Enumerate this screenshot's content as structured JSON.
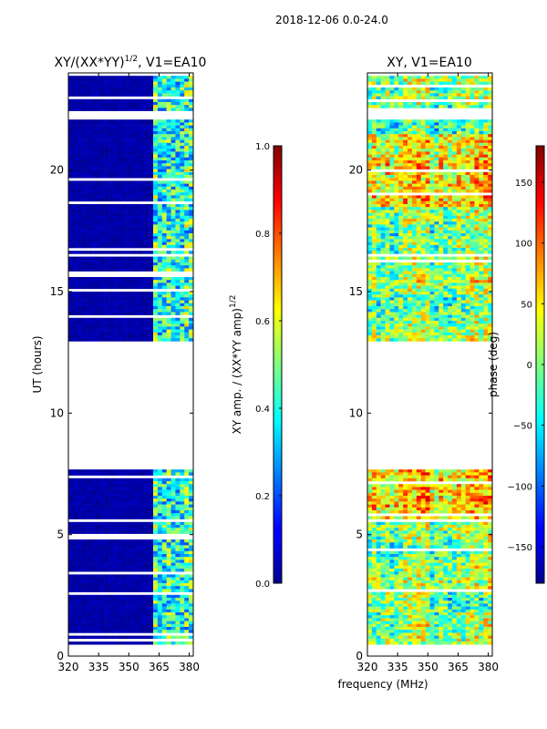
{
  "figure": {
    "suptitle": "2018-12-06 0.0-24.0",
    "shared_xlabel": "frequency (MHz)"
  },
  "chart_data": [
    {
      "type": "heatmap",
      "title": "XY/(XX*YY)",
      "title_superscript": "1/2",
      "title_suffix": ", V1=EA10",
      "xlabel": "",
      "ylabel": "UT (hours)",
      "xlim": [
        320,
        382
      ],
      "ylim": [
        0,
        24
      ],
      "xticks": [
        320,
        335,
        350,
        365,
        380
      ],
      "yticks": [
        0,
        5,
        10,
        15,
        20
      ],
      "colorbar": {
        "label": "XY amp. / (XX*YY amp)",
        "label_superscript": "1/2",
        "range": [
          0.0,
          1.0
        ],
        "ticks": [
          "0.0",
          "0.2",
          "0.4",
          "0.6",
          "0.8",
          "1.0"
        ],
        "colormap": "jet"
      },
      "observation_blocks_hours": [
        [
          0.5,
          5.5
        ],
        [
          5.6,
          7.7
        ],
        [
          13.0,
          22.2
        ],
        [
          22.4,
          23.9
        ]
      ],
      "notes": "Low normalized amplitude (~0.0) across 320-362 MHz; elevated, variable amplitude (0.2-0.7) in 362-382 MHz band with vertical channel structure."
    },
    {
      "type": "heatmap",
      "title": "XY, V1=EA10",
      "xlabel": "",
      "ylabel": "",
      "xlim": [
        320,
        382
      ],
      "ylim": [
        0,
        24
      ],
      "xticks": [
        320,
        335,
        350,
        365,
        380
      ],
      "yticks": [
        0,
        5,
        10,
        15,
        20
      ],
      "colorbar": {
        "label": "phase (deg)",
        "range": [
          -180,
          180
        ],
        "ticks": [
          "−150",
          "−100",
          "−50",
          "0",
          "50",
          "100",
          "150"
        ],
        "colormap": "jet"
      },
      "observation_blocks_hours": [
        [
          0.5,
          5.5
        ],
        [
          5.6,
          7.7
        ],
        [
          13.0,
          22.2
        ],
        [
          22.4,
          23.9
        ]
      ],
      "notes": "XY cross-hand phase varying over full -180 to 180 deg range; strong phase structure near 19-21 h and 6-7 h."
    }
  ]
}
